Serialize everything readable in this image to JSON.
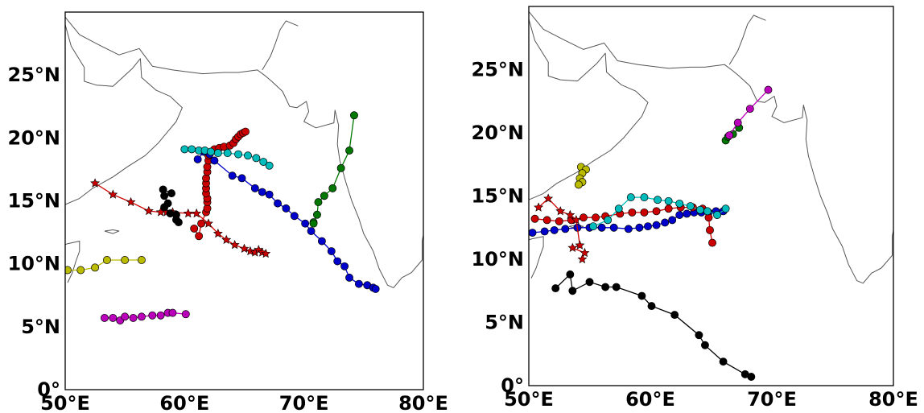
{
  "chart_data": [
    {
      "type": "scatter",
      "xlim": [
        50,
        80
      ],
      "ylim": [
        0,
        30
      ],
      "xticks": [
        {
          "v": 50,
          "label": "50°E"
        },
        {
          "v": 60,
          "label": "60°E"
        },
        {
          "v": 70,
          "label": "70°E"
        },
        {
          "v": 80,
          "label": "80°E"
        }
      ],
      "yticks": [
        {
          "v": 0,
          "label": "0°"
        },
        {
          "v": 5,
          "label": "5°N"
        },
        {
          "v": 10,
          "label": "10°N"
        },
        {
          "v": 15,
          "label": "15°N"
        },
        {
          "v": 20,
          "label": "20°N"
        },
        {
          "v": 25,
          "label": "25°N"
        }
      ],
      "series": [
        {
          "color": "#cc0000",
          "marker": "star",
          "points": [
            [
              52.5,
              16.4
            ],
            [
              54,
              15.5
            ],
            [
              55.5,
              14.9
            ],
            [
              57,
              14.2
            ],
            [
              58,
              14.1
            ],
            [
              58.5,
              14.1
            ],
            [
              59,
              14.1
            ],
            [
              60.3,
              14
            ],
            [
              61,
              14
            ],
            [
              62,
              13.2
            ],
            [
              62.8,
              12.4
            ],
            [
              63.5,
              11.9
            ],
            [
              64.2,
              11.5
            ],
            [
              65,
              11.2
            ],
            [
              65.5,
              11
            ],
            [
              65.9,
              10.9
            ],
            [
              66.2,
              11.1
            ],
            [
              66.5,
              10.9
            ],
            [
              66.8,
              10.8
            ]
          ]
        },
        {
          "color": "#cc0000",
          "marker": "circle",
          "points": [
            [
              60.8,
              12.8
            ],
            [
              61.2,
              12.2
            ],
            [
              61.4,
              13.2
            ],
            [
              61.8,
              14.1
            ],
            [
              61.9,
              14.4
            ],
            [
              61.9,
              14.9
            ],
            [
              61.9,
              15.2
            ],
            [
              61.8,
              15.6
            ],
            [
              61.8,
              16
            ],
            [
              61.8,
              16.4
            ],
            [
              61.8,
              16.8
            ],
            [
              61.9,
              17.3
            ],
            [
              61.9,
              17.7
            ],
            [
              62,
              18.2
            ],
            [
              62,
              18.6
            ],
            [
              62.2,
              18.9
            ],
            [
              62.5,
              19.1
            ],
            [
              62.9,
              19.2
            ],
            [
              63.3,
              19.3
            ],
            [
              63.8,
              19.4
            ],
            [
              64.1,
              19.6
            ],
            [
              64.3,
              19.9
            ],
            [
              64.5,
              20.1
            ],
            [
              64.7,
              20.3
            ],
            [
              64.9,
              20.4
            ],
            [
              65.1,
              20.5
            ]
          ]
        },
        {
          "color": "#0000cc",
          "marker": "circle",
          "points": [
            [
              61.1,
              18.3
            ],
            [
              61.6,
              18.9
            ],
            [
              62.1,
              18.7
            ],
            [
              62.5,
              18.2
            ],
            [
              64,
              17
            ],
            [
              64.8,
              16.8
            ],
            [
              65.9,
              16
            ],
            [
              66.5,
              15.7
            ],
            [
              67.1,
              15.5
            ],
            [
              67.8,
              14.8
            ],
            [
              68.5,
              14.4
            ],
            [
              69.2,
              13.8
            ],
            [
              70.1,
              13.2
            ],
            [
              70.6,
              12.6
            ],
            [
              71.5,
              11.8
            ],
            [
              72.3,
              11
            ],
            [
              72.8,
              10.2
            ],
            [
              73.4,
              9.8
            ],
            [
              73.8,
              8.9
            ],
            [
              74.6,
              8.4
            ],
            [
              75.3,
              8.3
            ],
            [
              75.8,
              8.1
            ],
            [
              76,
              8
            ]
          ]
        },
        {
          "color": "#00bbbb",
          "marker": "circle",
          "points": [
            [
              60,
              19.1
            ],
            [
              60.6,
              19.1
            ],
            [
              61.2,
              19
            ],
            [
              61.7,
              19
            ],
            [
              62.2,
              18.9
            ],
            [
              62.8,
              18.8
            ],
            [
              63.6,
              18.8
            ],
            [
              64.5,
              18.7
            ],
            [
              65.3,
              18.6
            ],
            [
              66,
              18.4
            ],
            [
              66.6,
              18.1
            ],
            [
              67.1,
              17.8
            ]
          ]
        },
        {
          "color": "#007700",
          "marker": "circle",
          "points": [
            [
              74.2,
              21.8
            ],
            [
              73.8,
              19
            ],
            [
              73.1,
              17.6
            ],
            [
              72.4,
              16
            ],
            [
              71.7,
              15.4
            ],
            [
              71.2,
              14.9
            ],
            [
              71.1,
              13.9
            ],
            [
              70.8,
              13.3
            ],
            [
              70.8,
              13.2
            ]
          ]
        },
        {
          "color": "#000000",
          "marker": "circle",
          "points": [
            [
              58.2,
              15.9
            ],
            [
              58.9,
              15.6
            ],
            [
              58.3,
              15.4
            ],
            [
              58.6,
              14.8
            ],
            [
              58.3,
              14.5
            ],
            [
              58.8,
              14
            ],
            [
              59.3,
              13.9
            ],
            [
              59.3,
              13.5
            ],
            [
              59.5,
              13.3
            ]
          ]
        },
        {
          "color": "#bbbb00",
          "marker": "circle",
          "points": [
            [
              50.2,
              9.5
            ],
            [
              51.3,
              9.5
            ],
            [
              52.5,
              9.7
            ],
            [
              53.5,
              10.3
            ],
            [
              55,
              10.3
            ],
            [
              56.4,
              10.3
            ]
          ]
        },
        {
          "color": "#bb00bb",
          "marker": "circle",
          "points": [
            [
              53.3,
              5.7
            ],
            [
              54,
              5.7
            ],
            [
              54.6,
              5.5
            ],
            [
              55,
              5.8
            ],
            [
              55.7,
              5.7
            ],
            [
              56.4,
              5.8
            ],
            [
              57.3,
              5.9
            ],
            [
              58,
              5.9
            ],
            [
              58.6,
              6.1
            ],
            [
              59,
              6.1
            ],
            [
              60.1,
              6
            ]
          ]
        }
      ]
    },
    {
      "type": "scatter",
      "xlim": [
        50,
        80
      ],
      "ylim": [
        0,
        30
      ],
      "xticks": [
        {
          "v": 50,
          "label": "50°E"
        },
        {
          "v": 60,
          "label": "60°E"
        },
        {
          "v": 70,
          "label": "70°E"
        },
        {
          "v": 80,
          "label": "80°E"
        }
      ],
      "yticks": [
        {
          "v": 0,
          "label": "0°"
        },
        {
          "v": 5,
          "label": "5°N"
        },
        {
          "v": 10,
          "label": "10°N"
        },
        {
          "v": 15,
          "label": "15°N"
        },
        {
          "v": 20,
          "label": "20°N"
        },
        {
          "v": 25,
          "label": "25°N"
        }
      ],
      "series": [
        {
          "color": "#000000",
          "marker": "circle",
          "points": [
            [
              52.2,
              7.7
            ],
            [
              53.4,
              8.8
            ],
            [
              53.6,
              7.5
            ],
            [
              55,
              8.2
            ],
            [
              56.3,
              7.8
            ],
            [
              57.2,
              7.8
            ],
            [
              59.3,
              7.1
            ],
            [
              60.1,
              6.3
            ],
            [
              62,
              5.6
            ],
            [
              64,
              4
            ],
            [
              64.5,
              3.2
            ],
            [
              66,
              1.9
            ],
            [
              67.8,
              0.9
            ],
            [
              68.3,
              0.7
            ]
          ]
        },
        {
          "color": "#0000cc",
          "marker": "circle",
          "points": [
            [
              50.3,
              12.1
            ],
            [
              51.3,
              12.2
            ],
            [
              52.1,
              12.3
            ],
            [
              53,
              12.4
            ],
            [
              54,
              12.5
            ],
            [
              55,
              12.5
            ],
            [
              56,
              12.5
            ],
            [
              57,
              12.5
            ],
            [
              58.2,
              12.4
            ],
            [
              59.1,
              12.5
            ],
            [
              59.8,
              12.6
            ],
            [
              60.5,
              12.7
            ],
            [
              61.2,
              12.9
            ],
            [
              61.8,
              13.1
            ],
            [
              62.4,
              13.5
            ],
            [
              63,
              13.6
            ],
            [
              63.6,
              13.7
            ],
            [
              64.2,
              13.7
            ],
            [
              64.8,
              13.7
            ],
            [
              65.4,
              13.8
            ],
            [
              66,
              13.8
            ]
          ]
        },
        {
          "color": "#cc0000",
          "marker": "circle",
          "points": [
            [
              50.5,
              13.2
            ],
            [
              51.5,
              13.1
            ],
            [
              52.5,
              13
            ],
            [
              53.5,
              13.1
            ],
            [
              54.5,
              13.3
            ],
            [
              55.5,
              13.3
            ],
            [
              56.3,
              13.4
            ],
            [
              57.5,
              13.6
            ],
            [
              58.5,
              13.7
            ],
            [
              59.5,
              13.7
            ],
            [
              60.5,
              13.8
            ],
            [
              61.5,
              14
            ],
            [
              62.5,
              14.1
            ],
            [
              63.5,
              14.1
            ],
            [
              64.3,
              14
            ],
            [
              64.8,
              13.3
            ],
            [
              64.9,
              12.3
            ],
            [
              65.1,
              11.3
            ]
          ]
        },
        {
          "color": "#cc0000",
          "marker": "star",
          "points": [
            [
              50.8,
              14.1
            ],
            [
              51.6,
              14.8
            ],
            [
              52.6,
              13.8
            ],
            [
              53.4,
              13.5
            ],
            [
              53.9,
              13.1
            ],
            [
              54.2,
              11.1
            ],
            [
              53.6,
              10.9
            ],
            [
              54.6,
              10.5
            ],
            [
              54.4,
              10
            ]
          ]
        },
        {
          "color": "#00bbbb",
          "marker": "circle",
          "points": [
            [
              55.3,
              12.6
            ],
            [
              56.5,
              13.1
            ],
            [
              57.4,
              14
            ],
            [
              58.4,
              14.9
            ],
            [
              59.5,
              14.9
            ],
            [
              60.6,
              14.7
            ],
            [
              61.5,
              14.6
            ],
            [
              62.4,
              14.4
            ],
            [
              63.3,
              14.2
            ],
            [
              64.1,
              13.9
            ],
            [
              64.7,
              13.8
            ],
            [
              65.5,
              13.5
            ],
            [
              66.2,
              14
            ]
          ]
        },
        {
          "color": "#bbbb00",
          "marker": "circle",
          "points": [
            [
              54.3,
              17.3
            ],
            [
              54.7,
              17.1
            ],
            [
              54.4,
              16.8
            ],
            [
              54.2,
              16.4
            ],
            [
              54.4,
              16.1
            ],
            [
              54.1,
              15.9
            ]
          ]
        },
        {
          "color": "#007700",
          "marker": "circle",
          "points": [
            [
              66.2,
              19.4
            ],
            [
              66.4,
              19.7
            ],
            [
              66.8,
              19.9
            ],
            [
              67.3,
              20.4
            ]
          ]
        },
        {
          "color": "#bb00bb",
          "marker": "circle",
          "points": [
            [
              66.5,
              19.8
            ],
            [
              67.2,
              20.8
            ],
            [
              68.2,
              21.9
            ],
            [
              69.7,
              23.4
            ]
          ]
        }
      ]
    }
  ]
}
